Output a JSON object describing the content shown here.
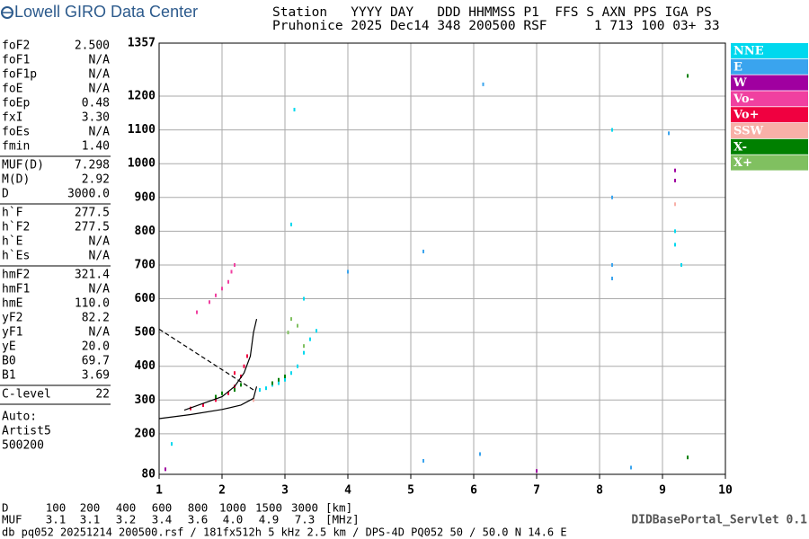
{
  "header": {
    "brand": "Lowell GIRO Data Center",
    "line1": "Station   YYYY DAY   DDD HHMMSS P1  FFS S AXN PPS IGA PS",
    "line2": "Pruhonice 2025 Dec14 348 200500 RSF      1 713 100 03+ 33"
  },
  "params": [
    [
      [
        "foF2",
        "2.500"
      ],
      [
        "foF1",
        "N/A"
      ],
      [
        "foF1p",
        "N/A"
      ],
      [
        "foE",
        "N/A"
      ],
      [
        "foEp",
        "0.48"
      ],
      [
        "fxI",
        "3.30"
      ],
      [
        "foEs",
        "N/A"
      ],
      [
        "fmin",
        "1.40"
      ]
    ],
    [
      [
        "MUF(D)",
        "7.298"
      ],
      [
        "M(D)",
        "2.92"
      ],
      [
        "D",
        "3000.0"
      ]
    ],
    [
      [
        "h`F",
        "277.5"
      ],
      [
        "h`F2",
        "277.5"
      ],
      [
        "h`E",
        "N/A"
      ],
      [
        "h`Es",
        "N/A"
      ]
    ],
    [
      [
        "hmF2",
        "321.4"
      ],
      [
        "hmF1",
        "N/A"
      ],
      [
        "hmE",
        "110.0"
      ],
      [
        "yF2",
        "82.2"
      ],
      [
        "yF1",
        "N/A"
      ],
      [
        "yE",
        "20.0"
      ],
      [
        "B0",
        "69.7"
      ],
      [
        "B1",
        "3.69"
      ]
    ],
    [
      [
        "C-level",
        "22"
      ]
    ]
  ],
  "auto": [
    "Auto:",
    "Artist5",
    "500200"
  ],
  "muf_table": [
    {
      "label": "D",
      "values": [
        "100",
        "200",
        "400",
        "600",
        "800",
        "1000",
        "1500",
        "3000"
      ],
      "unit": "[km]"
    },
    {
      "label": "MUF",
      "values": [
        "3.1",
        "3.1",
        "3.2",
        "3.4",
        "3.6",
        "4.0",
        "4.9",
        "7.3"
      ],
      "unit": "[MHz]"
    }
  ],
  "footer": {
    "servlet": "DIDBasePortal_Servlet 0.1",
    "file": "db pq052 20251214 200500.rsf / 181fx512h 5 kHz 2.5 km / DPS-4D PQ052 50 / 50.0 N 14.6 E"
  },
  "chart_data": {
    "type": "scatter",
    "xlim": [
      1,
      10
    ],
    "xticks": [
      1,
      2,
      3,
      4,
      5,
      6,
      7,
      8,
      9,
      10
    ],
    "ylim": [
      80,
      1357
    ],
    "yticks": [
      80,
      200,
      300,
      400,
      500,
      600,
      700,
      800,
      900,
      1000,
      1100,
      1200,
      1357
    ],
    "grid": true,
    "series": [
      {
        "name": "NNE",
        "color": "#00d8ee",
        "x": [
          2.6,
          2.7,
          2.8,
          2.9,
          3.0,
          3.1,
          3.2,
          3.3,
          3.4,
          3.5,
          3.3,
          3.1,
          3.15,
          1.2,
          8.2,
          9.2,
          9.2,
          9.3
        ],
        "values": [
          330,
          335,
          345,
          350,
          360,
          380,
          400,
          440,
          480,
          505,
          600,
          820,
          1160,
          170,
          1100,
          800,
          760,
          700
        ]
      },
      {
        "name": "E",
        "color": "#3aa4ee",
        "x": [
          8.2,
          8.2,
          8.2,
          5.2,
          5.2,
          6.15,
          6.1,
          8.5,
          4.0,
          9.1
        ],
        "values": [
          660,
          700,
          900,
          120,
          740,
          1235,
          140,
          100,
          680,
          1090
        ]
      },
      {
        "name": "W",
        "color": "#a000a0",
        "x": [
          9.2,
          9.2,
          7.0,
          1.1
        ],
        "values": [
          980,
          950,
          90,
          95
        ]
      },
      {
        "name": "Vo-",
        "color": "#f040a0",
        "x": [
          1.6,
          1.8,
          1.9,
          2.0,
          2.1,
          2.15,
          2.2
        ],
        "values": [
          560,
          590,
          610,
          630,
          650,
          680,
          700
        ]
      },
      {
        "name": "Vo+",
        "color": "#f00040",
        "x": [
          1.5,
          1.7,
          1.9,
          2.1,
          2.2,
          2.3,
          2.35,
          2.4,
          2.2
        ],
        "values": [
          275,
          285,
          300,
          320,
          340,
          370,
          400,
          430,
          380
        ]
      },
      {
        "name": "SSW",
        "color": "#f8b0a8",
        "x": [
          2.5,
          9.2
        ],
        "values": [
          300,
          880
        ]
      },
      {
        "name": "X-",
        "color": "#008000",
        "x": [
          1.9,
          2.0,
          2.2,
          2.3,
          2.8,
          2.9,
          3.0,
          9.4,
          9.4
        ],
        "values": [
          310,
          320,
          330,
          345,
          350,
          360,
          370,
          130,
          1260
        ]
      },
      {
        "name": "X+",
        "color": "#80c060",
        "x": [
          3.05,
          3.1,
          3.2,
          3.3
        ],
        "values": [
          500,
          540,
          520,
          460
        ]
      }
    ],
    "lines": [
      {
        "color": "#000000",
        "dash": false,
        "x": [
          1.4,
          1.7,
          2.0,
          2.2,
          2.35,
          2.45,
          2.5,
          2.55
        ],
        "values": [
          270,
          290,
          310,
          340,
          380,
          430,
          500,
          540
        ]
      },
      {
        "color": "#000000",
        "dash": false,
        "x": [
          1.0,
          1.5,
          2.0,
          2.3,
          2.5,
          2.55
        ],
        "values": [
          245,
          257,
          272,
          285,
          305,
          340
        ]
      },
      {
        "color": "#000000",
        "dash": true,
        "x": [
          1.0,
          1.5,
          2.0,
          2.5
        ],
        "values": [
          510,
          450,
          390,
          330
        ]
      }
    ]
  }
}
